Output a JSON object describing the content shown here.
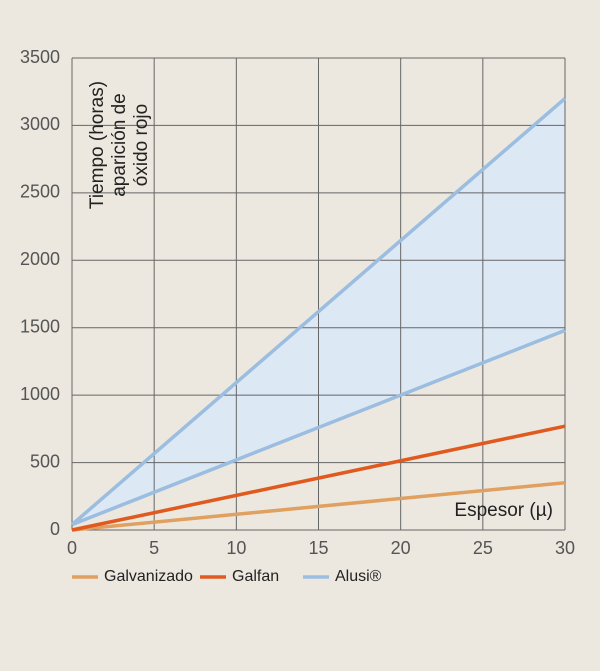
{
  "chart_data": {
    "type": "line",
    "ylabel": [
      "Tiempo (horas)",
      "aparición de",
      "óxido rojo"
    ],
    "xlabel": "Espesor (µ)",
    "x": [
      0,
      30
    ],
    "series": [
      {
        "name": "Galvanizado",
        "color": "#e0a060",
        "values": [
          0,
          350
        ]
      },
      {
        "name": "Galfan",
        "color": "#e05a20",
        "values": [
          0,
          770
        ]
      },
      {
        "name": "Alusi®",
        "color": "#9bbde0",
        "fill": "#dde8f5",
        "low": [
          40,
          1480
        ],
        "high": [
          40,
          3200
        ]
      }
    ],
    "xlim": [
      0,
      30
    ],
    "xticks": [
      0,
      5,
      10,
      15,
      20,
      25,
      30
    ],
    "ylim": [
      0,
      3500
    ],
    "yticks": [
      0,
      500,
      1000,
      1500,
      2000,
      2500,
      3000,
      3500
    ],
    "grid": true
  }
}
